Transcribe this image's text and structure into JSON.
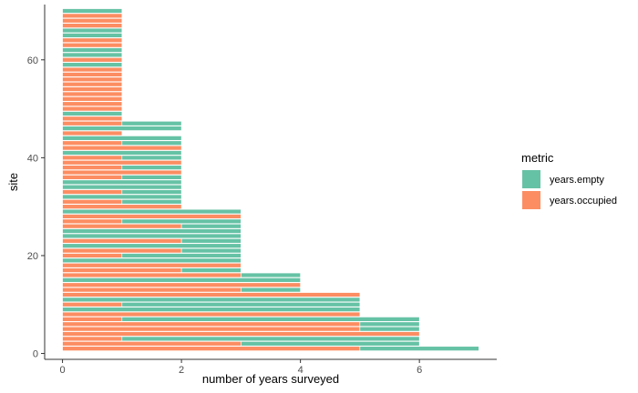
{
  "chart_data": {
    "type": "bar",
    "orientation": "horizontal",
    "stacked": true,
    "title": "",
    "xlabel": "number of years surveyed",
    "ylabel": "site",
    "xlim": [
      -0.3,
      7.3
    ],
    "ylim": [
      -1.2,
      71.3
    ],
    "xticks": [
      0,
      2,
      4,
      6
    ],
    "yticks": [
      0,
      20,
      40,
      60
    ],
    "grid": false,
    "legend": {
      "title": "metric",
      "position": "right",
      "entries": [
        {
          "label": "years.empty",
          "color": "#66C2A5"
        },
        {
          "label": "years.occupied",
          "color": "#FC8D62"
        }
      ]
    },
    "stack_order": [
      "years.occupied",
      "years.empty"
    ],
    "y": [
      1,
      2,
      3,
      4,
      5,
      6,
      7,
      8,
      9,
      10,
      11,
      12,
      13,
      14,
      15,
      16,
      17,
      18,
      19,
      20,
      21,
      22,
      23,
      24,
      25,
      26,
      27,
      28,
      29,
      30,
      31,
      32,
      33,
      34,
      35,
      36,
      37,
      38,
      39,
      40,
      41,
      42,
      43,
      44,
      45,
      46,
      47,
      48,
      49,
      50,
      51,
      52,
      53,
      54,
      55,
      56,
      57,
      58,
      59,
      60,
      61,
      62,
      63,
      64,
      65,
      66,
      67,
      68,
      69,
      70
    ],
    "series": [
      {
        "name": "years.occupied",
        "values": [
          5,
          3,
          1,
          6,
          5,
          5,
          1,
          5,
          0,
          1,
          0,
          5,
          3,
          4,
          0,
          3,
          2,
          3,
          0,
          1,
          2,
          0,
          2,
          0,
          0,
          2,
          1,
          3,
          0,
          2,
          1,
          0,
          1,
          0,
          0,
          1,
          2,
          1,
          2,
          1,
          0,
          2,
          1,
          0,
          1,
          0,
          1,
          1,
          0,
          1,
          1,
          1,
          1,
          1,
          1,
          1,
          1,
          1,
          0,
          1,
          0,
          0,
          1,
          1,
          0,
          0,
          1,
          1,
          1,
          0
        ]
      },
      {
        "name": "years.empty",
        "values": [
          2,
          3,
          5,
          0,
          1,
          1,
          5,
          0,
          5,
          4,
          5,
          0,
          1,
          0,
          4,
          1,
          1,
          0,
          3,
          2,
          1,
          3,
          1,
          3,
          3,
          1,
          2,
          0,
          3,
          0,
          1,
          2,
          1,
          2,
          2,
          1,
          0,
          1,
          0,
          1,
          2,
          0,
          1,
          2,
          0,
          2,
          1,
          0,
          1,
          0,
          0,
          0,
          0,
          0,
          0,
          0,
          0,
          0,
          1,
          0,
          1,
          1,
          0,
          0,
          1,
          1,
          0,
          0,
          0,
          1
        ]
      }
    ],
    "colors": {
      "years.empty": "#66C2A5",
      "years.occupied": "#FC8D62",
      "bar_outline": "#ffffff",
      "axis": "#333333"
    }
  }
}
